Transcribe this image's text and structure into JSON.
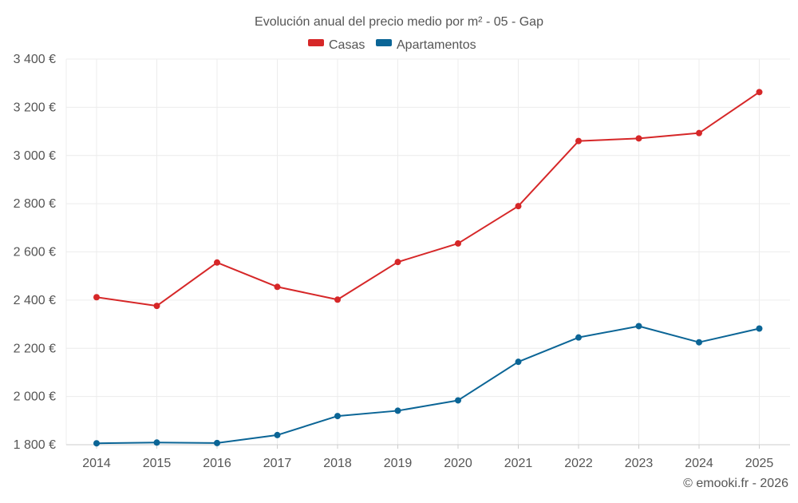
{
  "chart_data": {
    "type": "line",
    "title": "Evolución anual del precio medio por m² - 05 - Gap",
    "xlabel": "",
    "ylabel": "",
    "categories": [
      "2014",
      "2015",
      "2016",
      "2017",
      "2018",
      "2019",
      "2020",
      "2021",
      "2022",
      "2023",
      "2024",
      "2025"
    ],
    "ylim": [
      1800,
      3400
    ],
    "yticks": [
      1800,
      2000,
      2200,
      2400,
      2600,
      2800,
      3000,
      3200,
      3400
    ],
    "ytick_labels": [
      "1 800 €",
      "2 000 €",
      "2 200 €",
      "2 400 €",
      "2 600 €",
      "2 800 €",
      "3 000 €",
      "3 200 €",
      "3 400 €"
    ],
    "legend_position": "top-center",
    "grid": true,
    "series": [
      {
        "name": "Casas",
        "color": "#d62728",
        "values": [
          2412,
          2376,
          2556,
          2455,
          2402,
          2558,
          2635,
          2790,
          3060,
          3071,
          3093,
          3263
        ]
      },
      {
        "name": "Apartamentos",
        "color": "#0b6596",
        "values": [
          1806,
          1809,
          1807,
          1840,
          1919,
          1941,
          1984,
          2144,
          2245,
          2292,
          2225,
          2282
        ]
      }
    ]
  },
  "credit": "© emooki.fr - 2026"
}
